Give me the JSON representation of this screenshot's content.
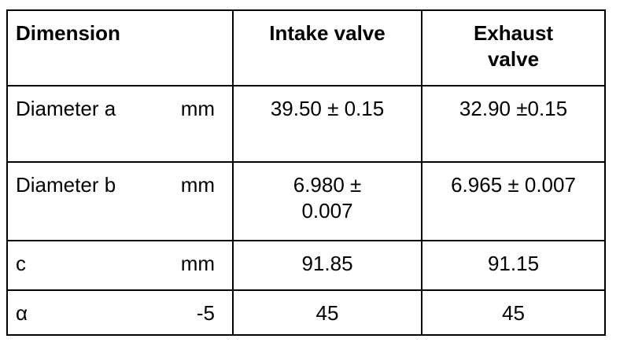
{
  "table": {
    "header": [
      "Dimension",
      "Intake valve",
      "Exhaust valve"
    ],
    "rows": [
      [
        "Diameter a",
        "mm",
        "39.50 ± 0.15",
        "32.90 ±0.15"
      ],
      [
        "Diameter b",
        "mm",
        "6.980 ± 0.007",
        "6.965 ± 0.007"
      ],
      [
        "c",
        "mm",
        "91.85",
        "91.15"
      ],
      [
        "α",
        "-5",
        "45",
        "45"
      ]
    ]
  }
}
